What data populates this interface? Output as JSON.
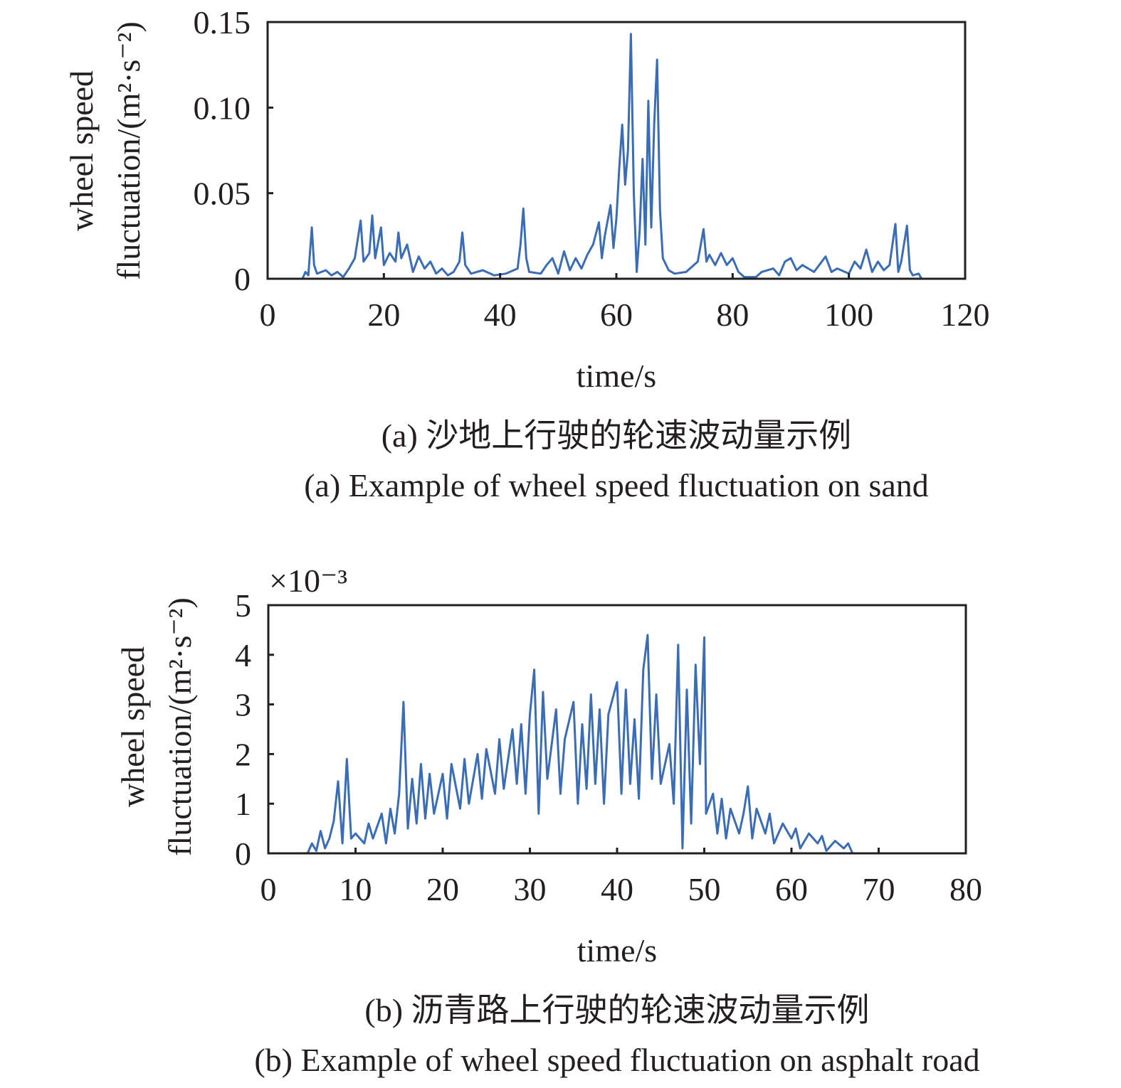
{
  "chart_data": [
    {
      "type": "line",
      "xlabel": "time/s",
      "ylabel_line1": "wheel speed",
      "ylabel_line2": "fluctuation/(m²·s⁻²)",
      "xlim": [
        0,
        120
      ],
      "ylim": [
        0,
        0.15
      ],
      "xticks": [
        "0",
        "20",
        "40",
        "60",
        "80",
        "100",
        "120"
      ],
      "yticks": [
        "0",
        "0.05",
        "0.10",
        "0.15"
      ],
      "grid": false,
      "color": "#3a6db5",
      "caption_cn": "(a) 沙地上行驶的轮速波动量示例",
      "caption_en": "(a) Example of wheel speed fluctuation on sand",
      "series": [
        {
          "points": [
            [
              6,
              0
            ],
            [
              6.5,
              0.004
            ],
            [
              7,
              0.002
            ],
            [
              7.6,
              0.03
            ],
            [
              8,
              0.008
            ],
            [
              8.5,
              0.003
            ],
            [
              10,
              0.005
            ],
            [
              11,
              0.002
            ],
            [
              12,
              0.004
            ],
            [
              13,
              0.001
            ],
            [
              14,
              0.006
            ],
            [
              15,
              0.012
            ],
            [
              16,
              0.034
            ],
            [
              16.5,
              0.01
            ],
            [
              17.5,
              0.015
            ],
            [
              18,
              0.037
            ],
            [
              18.5,
              0.012
            ],
            [
              19.5,
              0.03
            ],
            [
              20,
              0.008
            ],
            [
              21,
              0.015
            ],
            [
              22,
              0.01
            ],
            [
              22.5,
              0.027
            ],
            [
              23,
              0.012
            ],
            [
              24,
              0.02
            ],
            [
              25,
              0.004
            ],
            [
              26,
              0.013
            ],
            [
              27,
              0.006
            ],
            [
              28,
              0.01
            ],
            [
              29,
              0.003
            ],
            [
              30,
              0.006
            ],
            [
              31,
              0.002
            ],
            [
              32,
              0.004
            ],
            [
              33,
              0.01
            ],
            [
              33.5,
              0.027
            ],
            [
              34,
              0.008
            ],
            [
              35,
              0.003
            ],
            [
              37,
              0.005
            ],
            [
              39,
              0.002
            ],
            [
              41,
              0.003
            ],
            [
              43,
              0.006
            ],
            [
              43.5,
              0.02
            ],
            [
              44,
              0.041
            ],
            [
              44.5,
              0.012
            ],
            [
              45,
              0.004
            ],
            [
              47,
              0.003
            ],
            [
              48,
              0.008
            ],
            [
              49,
              0.012
            ],
            [
              50,
              0.003
            ],
            [
              51,
              0.016
            ],
            [
              52,
              0.005
            ],
            [
              53,
              0.012
            ],
            [
              54,
              0.006
            ],
            [
              55,
              0.014
            ],
            [
              56,
              0.02
            ],
            [
              57,
              0.033
            ],
            [
              57.5,
              0.012
            ],
            [
              58,
              0.025
            ],
            [
              59,
              0.043
            ],
            [
              59.5,
              0.018
            ],
            [
              60,
              0.035
            ],
            [
              60.5,
              0.065
            ],
            [
              61,
              0.09
            ],
            [
              61.5,
              0.055
            ],
            [
              62,
              0.075
            ],
            [
              62.5,
              0.143
            ],
            [
              63,
              0.05
            ],
            [
              63.5,
              0.004
            ],
            [
              64,
              0.028
            ],
            [
              64.5,
              0.07
            ],
            [
              65,
              0.02
            ],
            [
              65.5,
              0.104
            ],
            [
              66,
              0.03
            ],
            [
              66.5,
              0.09
            ],
            [
              67,
              0.128
            ],
            [
              67.5,
              0.04
            ],
            [
              68,
              0.012
            ],
            [
              69,
              0.005
            ],
            [
              70,
              0.003
            ],
            [
              72,
              0.004
            ],
            [
              74,
              0.01
            ],
            [
              75,
              0.029
            ],
            [
              75.5,
              0.01
            ],
            [
              76,
              0.014
            ],
            [
              77,
              0.008
            ],
            [
              78,
              0.015
            ],
            [
              79,
              0.008
            ],
            [
              80,
              0.012
            ],
            [
              81,
              0.004
            ],
            [
              82,
              0.001
            ],
            [
              84,
              0.001
            ],
            [
              85,
              0.004
            ],
            [
              87,
              0.006
            ],
            [
              88,
              0.002
            ],
            [
              89,
              0.01
            ],
            [
              90,
              0.012
            ],
            [
              91,
              0.005
            ],
            [
              92,
              0.008
            ],
            [
              94,
              0.004
            ],
            [
              96,
              0.013
            ],
            [
              97,
              0.004
            ],
            [
              98,
              0.006
            ],
            [
              100,
              0.003
            ],
            [
              101,
              0.01
            ],
            [
              102,
              0.006
            ],
            [
              103,
              0.017
            ],
            [
              104,
              0.004
            ],
            [
              105,
              0.01
            ],
            [
              106,
              0.005
            ],
            [
              107,
              0.008
            ],
            [
              108,
              0.032
            ],
            [
              108.5,
              0.004
            ],
            [
              109,
              0.01
            ],
            [
              110,
              0.031
            ],
            [
              110.5,
              0.005
            ],
            [
              111,
              0.002
            ],
            [
              112,
              0.003
            ],
            [
              112.5,
              0
            ]
          ]
        }
      ]
    },
    {
      "type": "line",
      "xlabel": "time/s",
      "ylabel_line1": "wheel speed",
      "ylabel_line2": "fluctuation/(m²·s⁻²)",
      "y_multiplier": "×10⁻³",
      "xlim": [
        0,
        80
      ],
      "ylim": [
        0,
        5
      ],
      "xticks": [
        "0",
        "10",
        "20",
        "30",
        "40",
        "50",
        "60",
        "70",
        "80"
      ],
      "yticks": [
        "0",
        "1",
        "2",
        "3",
        "4",
        "5"
      ],
      "grid": false,
      "color": "#3a6db5",
      "caption_cn": "(b) 沥青路上行驶的轮速波动量示例",
      "caption_en": "(b) Example of wheel speed fluctuation on asphalt road",
      "series": [
        {
          "points": [
            [
              4.5,
              0
            ],
            [
              5,
              0.2
            ],
            [
              5.5,
              0.05
            ],
            [
              6,
              0.45
            ],
            [
              6.5,
              0.1
            ],
            [
              7,
              0.3
            ],
            [
              7.5,
              0.65
            ],
            [
              8,
              1.45
            ],
            [
              8.5,
              0.2
            ],
            [
              9,
              1.9
            ],
            [
              9.5,
              0.3
            ],
            [
              10,
              0.4
            ],
            [
              11,
              0.2
            ],
            [
              11.5,
              0.6
            ],
            [
              12,
              0.3
            ],
            [
              13,
              0.8
            ],
            [
              13.5,
              0.2
            ],
            [
              14,
              0.9
            ],
            [
              14.5,
              0.4
            ],
            [
              15,
              1.2
            ],
            [
              15.5,
              3.05
            ],
            [
              16,
              0.5
            ],
            [
              16.5,
              1.5
            ],
            [
              17,
              0.6
            ],
            [
              17.5,
              1.8
            ],
            [
              18,
              0.7
            ],
            [
              18.5,
              1.6
            ],
            [
              19,
              0.8
            ],
            [
              20,
              1.6
            ],
            [
              20.5,
              0.7
            ],
            [
              21,
              1.8
            ],
            [
              22,
              0.9
            ],
            [
              22.5,
              1.9
            ],
            [
              23,
              1.0
            ],
            [
              24,
              2.0
            ],
            [
              24.5,
              1.1
            ],
            [
              25,
              2.1
            ],
            [
              26,
              1.2
            ],
            [
              26.5,
              2.3
            ],
            [
              27,
              1.3
            ],
            [
              28,
              2.5
            ],
            [
              28.5,
              1.4
            ],
            [
              29,
              2.6
            ],
            [
              29.5,
              1.2
            ],
            [
              30,
              2.8
            ],
            [
              30.5,
              3.7
            ],
            [
              31,
              0.8
            ],
            [
              31.5,
              3.25
            ],
            [
              32,
              1.5
            ],
            [
              33,
              2.9
            ],
            [
              33.5,
              1.2
            ],
            [
              34,
              2.3
            ],
            [
              35,
              3.05
            ],
            [
              35.5,
              1.0
            ],
            [
              36,
              2.6
            ],
            [
              36.5,
              1.3
            ],
            [
              37,
              3.2
            ],
            [
              37.5,
              1.4
            ],
            [
              38,
              2.9
            ],
            [
              38.5,
              1.0
            ],
            [
              39,
              2.8
            ],
            [
              40,
              3.45
            ],
            [
              40.5,
              1.2
            ],
            [
              41,
              3.3
            ],
            [
              41.5,
              1.4
            ],
            [
              42,
              2.7
            ],
            [
              42.5,
              1.1
            ],
            [
              43,
              3.7
            ],
            [
              43.5,
              4.4
            ],
            [
              44,
              1.5
            ],
            [
              44.5,
              3.2
            ],
            [
              45,
              1.4
            ],
            [
              46,
              2.2
            ],
            [
              46.5,
              1.0
            ],
            [
              47,
              4.2
            ],
            [
              47.5,
              0.1
            ],
            [
              48,
              3.3
            ],
            [
              48.5,
              0.6
            ],
            [
              49,
              3.8
            ],
            [
              49.5,
              1.8
            ],
            [
              50,
              4.35
            ],
            [
              50.2,
              0.8
            ],
            [
              51,
              1.2
            ],
            [
              51.5,
              0.4
            ],
            [
              52,
              1.1
            ],
            [
              52.5,
              0.3
            ],
            [
              53,
              0.9
            ],
            [
              54,
              0.4
            ],
            [
              54.5,
              0.8
            ],
            [
              55,
              1.35
            ],
            [
              55.5,
              0.3
            ],
            [
              56,
              0.9
            ],
            [
              57,
              0.4
            ],
            [
              57.5,
              0.8
            ],
            [
              58,
              0.2
            ],
            [
              59,
              0.6
            ],
            [
              60,
              0.3
            ],
            [
              60.5,
              0.5
            ],
            [
              61,
              0.1
            ],
            [
              62,
              0.4
            ],
            [
              63,
              0.2
            ],
            [
              63.5,
              0.35
            ],
            [
              64,
              0.05
            ],
            [
              65,
              0.25
            ],
            [
              66,
              0.1
            ],
            [
              66.5,
              0.2
            ],
            [
              67,
              0
            ]
          ]
        }
      ]
    }
  ]
}
